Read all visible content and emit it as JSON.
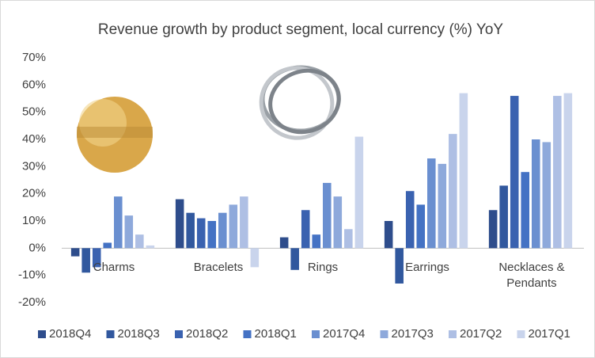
{
  "chart_data": {
    "type": "bar",
    "title": "Revenue growth by product segment, local currency (%) YoY",
    "categories": [
      "Charms",
      "Bracelets",
      "Rings",
      "Earrings",
      "Necklaces & Pendants"
    ],
    "series": [
      {
        "name": "2018Q4",
        "color": "#2e4d8c",
        "values": [
          -3,
          18,
          4,
          10,
          14
        ]
      },
      {
        "name": "2018Q3",
        "color": "#31589e",
        "values": [
          -9,
          13,
          -8,
          -13,
          23
        ]
      },
      {
        "name": "2018Q2",
        "color": "#3a62b0",
        "values": [
          -7,
          11,
          14,
          21,
          56
        ]
      },
      {
        "name": "2018Q1",
        "color": "#4472c4",
        "values": [
          2,
          10,
          5,
          16,
          28
        ]
      },
      {
        "name": "2017Q4",
        "color": "#6a8fd0",
        "values": [
          19,
          13,
          24,
          33,
          40
        ]
      },
      {
        "name": "2017Q3",
        "color": "#8ea9db",
        "values": [
          12,
          16,
          19,
          31,
          39
        ]
      },
      {
        "name": "2017Q2",
        "color": "#aebfe4",
        "values": [
          5,
          19,
          7,
          42,
          56
        ]
      },
      {
        "name": "2017Q1",
        "color": "#c9d4ec",
        "values": [
          1,
          -7,
          41,
          57,
          57
        ]
      }
    ],
    "ylim": [
      -20,
      70
    ],
    "yticks": [
      {
        "value": -20,
        "label": "-20%"
      },
      {
        "value": -10,
        "label": "-10%"
      },
      {
        "value": 0,
        "label": "0%"
      },
      {
        "value": 10,
        "label": "10%"
      },
      {
        "value": 20,
        "label": "20%"
      },
      {
        "value": 30,
        "label": "30%"
      },
      {
        "value": 40,
        "label": "40%"
      },
      {
        "value": 50,
        "label": "50%"
      },
      {
        "value": 60,
        "label": "60%"
      },
      {
        "value": 70,
        "label": "70%"
      }
    ],
    "grid": false,
    "legend": "bottom"
  }
}
